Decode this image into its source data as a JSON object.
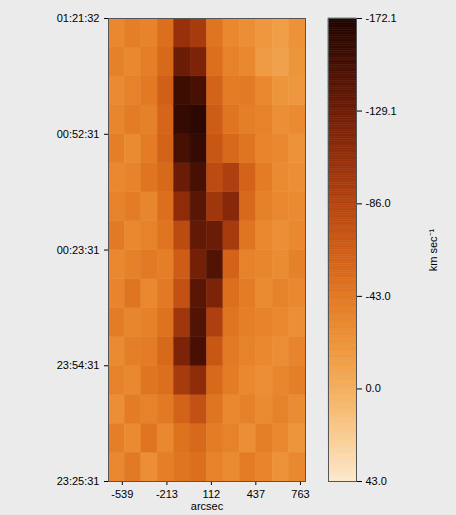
{
  "chart_data": {
    "type": "heatmap",
    "xlabel": "arcsec",
    "xlim": [
      -640,
      800
    ],
    "xticks": [
      -539,
      -213,
      112,
      437,
      763
    ],
    "ylim": [
      0,
      6961
    ],
    "yticks": [
      {
        "value": 0,
        "label": "23:25:31"
      },
      {
        "value": 1740,
        "label": "23:54:31"
      },
      {
        "value": 3480,
        "label": "00:23:31"
      },
      {
        "value": 5220,
        "label": "00:52:31"
      },
      {
        "value": 6961,
        "label": "01:21:32"
      }
    ],
    "x_edges": [
      -640,
      -520,
      -400,
      -280,
      -160,
      -40,
      80,
      200,
      320,
      440,
      560,
      680,
      800
    ],
    "y_edges": [
      0,
      435,
      870,
      1305,
      1740,
      2175,
      2610,
      3045,
      3480,
      3915,
      4350,
      4785,
      5220,
      5655,
      6090,
      6525,
      6961
    ],
    "cells": [
      [
        -30,
        -42,
        -25,
        -38,
        -45,
        -50,
        -35,
        -28,
        -40,
        -33,
        -22,
        -30
      ],
      [
        -38,
        -28,
        -45,
        -30,
        -48,
        -55,
        -40,
        -35,
        -25,
        -38,
        -30,
        -20
      ],
      [
        -25,
        -40,
        -35,
        -42,
        -60,
        -75,
        -45,
        -30,
        -36,
        -28,
        -35,
        -27
      ],
      [
        -35,
        -30,
        -45,
        -50,
        -95,
        -110,
        -55,
        -40,
        -30,
        -25,
        -32,
        -38
      ],
      [
        -28,
        -38,
        -40,
        -55,
        -120,
        -150,
        -70,
        -42,
        -35,
        -30,
        -26,
        -33
      ],
      [
        -40,
        -32,
        -36,
        -48,
        -100,
        -145,
        -90,
        -45,
        -38,
        -34,
        -30,
        -25
      ],
      [
        -33,
        -45,
        -30,
        -42,
        -75,
        -140,
        -120,
        -50,
        -40,
        -28,
        -35,
        -30
      ],
      [
        -30,
        -36,
        -42,
        -38,
        -65,
        -125,
        -145,
        -60,
        -35,
        -32,
        -27,
        -36
      ],
      [
        -42,
        -30,
        -35,
        -45,
        -80,
        -135,
        -130,
        -95,
        -45,
        -30,
        -25,
        -30
      ],
      [
        -35,
        -40,
        -32,
        -50,
        -110,
        -140,
        -100,
        -115,
        -55,
        -36,
        -30,
        -28
      ],
      [
        -30,
        -34,
        -45,
        -55,
        -130,
        -150,
        -80,
        -90,
        -60,
        -40,
        -28,
        -25
      ],
      [
        -38,
        -28,
        -40,
        -60,
        -150,
        -160,
        -70,
        -55,
        -45,
        -33,
        -30,
        -22
      ],
      [
        -32,
        -40,
        -36,
        -58,
        -160,
        -165,
        -65,
        -45,
        -38,
        -35,
        -25,
        -28
      ],
      [
        -28,
        -35,
        -42,
        -62,
        -155,
        -150,
        -60,
        -40,
        -42,
        -30,
        -20,
        -18
      ],
      [
        -36,
        -30,
        -38,
        -55,
        -130,
        -120,
        -50,
        -35,
        -30,
        -15,
        -10,
        -20
      ],
      [
        -30,
        -38,
        -34,
        -50,
        -105,
        -95,
        -45,
        -30,
        -25,
        -18,
        -12,
        -22
      ]
    ],
    "colorbar": {
      "label": "km sec⁻¹",
      "range": [
        -172.1,
        43
      ],
      "ticks": [
        {
          "value": 43,
          "label": "43.0"
        },
        {
          "value": 0,
          "label": "0.0"
        },
        {
          "value": -43,
          "label": "-43.0"
        },
        {
          "value": -86,
          "label": "-86.0"
        },
        -129.1,
        -172.1
      ]
    }
  }
}
